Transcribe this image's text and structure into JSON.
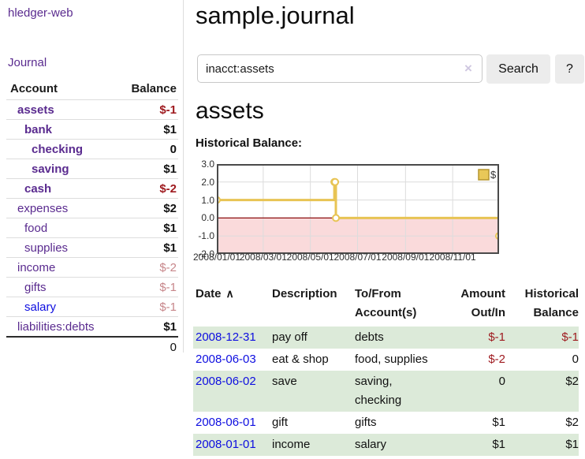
{
  "app": {
    "title": "hledger-web"
  },
  "sidebar": {
    "journal_link": "Journal",
    "table": {
      "headers": {
        "account": "Account",
        "balance": "Balance"
      },
      "rows": [
        {
          "name": "assets",
          "indent": 1,
          "name_class": "vpurpleb",
          "balance": "$-1",
          "balance_class": "bal-negbold"
        },
        {
          "name": "bank",
          "indent": 2,
          "name_class": "vpurpleb",
          "balance": "$1",
          "balance_class": "bal-bold"
        },
        {
          "name": "checking",
          "indent": 3,
          "name_class": "vpurpleb",
          "balance": "0",
          "balance_class": "bal-bold"
        },
        {
          "name": "saving",
          "indent": 3,
          "name_class": "vpurpleb",
          "balance": "$1",
          "balance_class": "bal-bold"
        },
        {
          "name": "cash",
          "indent": 2,
          "name_class": "vpurpleb",
          "balance": "$-2",
          "balance_class": "bal-negbold"
        },
        {
          "name": "expenses",
          "indent": 1,
          "name_class": "vpurple",
          "balance": "$2",
          "balance_class": "bal-bold"
        },
        {
          "name": "food",
          "indent": 2,
          "name_class": "vpurple",
          "balance": "$1",
          "balance_class": "bal-bold"
        },
        {
          "name": "supplies",
          "indent": 2,
          "name_class": "vpurple",
          "balance": "$1",
          "balance_class": "bal-bold"
        },
        {
          "name": "income",
          "indent": 1,
          "name_class": "vpurple",
          "balance": "$-2",
          "balance_class": "bal-neglight"
        },
        {
          "name": "gifts",
          "indent": 2,
          "name_class": "vpurple",
          "balance": "$-1",
          "balance_class": "bal-neglight"
        },
        {
          "name": "salary",
          "indent": 2,
          "name_class": "lblue",
          "balance": "$-1",
          "balance_class": "bal-neglight"
        },
        {
          "name": "liabilities:debts",
          "indent": 1,
          "name_class": "vpurple",
          "balance": "$1",
          "balance_class": "bal-bold"
        }
      ],
      "total": "0"
    }
  },
  "main": {
    "title": "sample.journal",
    "search": {
      "value": "inacct:assets",
      "clear_icon": "×",
      "button_label": "Search",
      "help_label": "?"
    },
    "account_heading": "assets",
    "chart_label": "Historical Balance:"
  },
  "chart_data": {
    "type": "line",
    "title": "Historical Balance:",
    "x_range": [
      "2008-01-01",
      "2008-12-31"
    ],
    "ylim": [
      -2,
      3
    ],
    "y_ticks": [
      3,
      2,
      1,
      0,
      -1,
      -2
    ],
    "x_ticks": [
      "2008/01/01",
      "2008/03/01",
      "2008/05/01",
      "2008/07/01",
      "2008/09/01",
      "2008/11/01"
    ],
    "grid": true,
    "legend_position": "top-right",
    "series": [
      {
        "name": "$",
        "step": true,
        "points": [
          [
            "2008-01-01",
            1
          ],
          [
            "2008-06-01",
            2
          ],
          [
            "2008-06-02",
            2
          ],
          [
            "2008-06-03",
            0
          ],
          [
            "2008-12-31",
            -1
          ]
        ]
      }
    ],
    "colors": {
      "line": "#e8c454",
      "marker_fill": "#ffffff",
      "legend_fill": "#e9c858",
      "legend_border": "#b5952f",
      "negative_region": "#fadadb",
      "zero_line": "#8b0f0f",
      "border": "#4a4a4a",
      "gridline": "#dcdcdc"
    }
  },
  "register_table": {
    "headers": {
      "date": "Date",
      "sort_icon": "∧",
      "description": "Description",
      "accounts": "To/From Account(s)",
      "amount": "Amount Out/In",
      "balance": "Historical Balance"
    },
    "rows": [
      {
        "date": "2008-12-31",
        "description": "pay off",
        "accounts": "debts",
        "amount": "$-1",
        "amount_class": "neg",
        "balance": "$-1",
        "balance_class": "neg"
      },
      {
        "date": "2008-06-03",
        "description": "eat & shop",
        "accounts": "food, supplies",
        "amount": "$-2",
        "amount_class": "neg",
        "balance": "0",
        "balance_class": ""
      },
      {
        "date": "2008-06-02",
        "description": "save",
        "accounts": "saving, checking",
        "amount": "0",
        "amount_class": "",
        "balance": "$2",
        "balance_class": ""
      },
      {
        "date": "2008-06-01",
        "description": "gift",
        "accounts": "gifts",
        "amount": "$1",
        "amount_class": "",
        "balance": "$2",
        "balance_class": ""
      },
      {
        "date": "2008-01-01",
        "description": "income",
        "accounts": "salary",
        "amount": "$1",
        "amount_class": "",
        "balance": "$1",
        "balance_class": ""
      }
    ]
  },
  "colors": {
    "link_visited_purple": "#5a2b8f",
    "link_blue": "#0e0ee0",
    "negative_red": "#9e191e",
    "negative_light_red": "#c7868a",
    "row_green": "#dcead9"
  }
}
